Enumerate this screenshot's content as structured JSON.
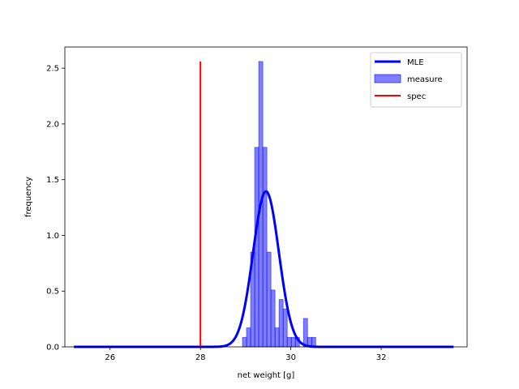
{
  "chart_data": {
    "type": "histogram",
    "xlabel": "net weight [g]",
    "ylabel": "frequency",
    "xlim": [
      25.0,
      33.9
    ],
    "ylim": [
      0,
      2.69
    ],
    "xticks": [
      26,
      28,
      30,
      32
    ],
    "yticks": [
      0.0,
      0.5,
      1.0,
      1.5,
      2.0,
      2.5
    ],
    "xtick_labels": [
      "26",
      "28",
      "30",
      "32"
    ],
    "ytick_labels": [
      "0.0",
      "0.5",
      "1.0",
      "1.5",
      "2.0",
      "2.5"
    ],
    "legend": {
      "placement": "top-right",
      "entries": [
        {
          "label": "MLE",
          "kind": "line",
          "color": "#0000ff"
        },
        {
          "label": "measure",
          "kind": "patch",
          "color": "#0000ff"
        },
        {
          "label": "spec",
          "kind": "line",
          "color": "#ff0000"
        }
      ]
    },
    "histogram": {
      "name": "measure",
      "color": "#0000ff",
      "alpha": 0.5,
      "bin_width": 0.09,
      "bins": [
        {
          "x0": 28.93,
          "value": 0.085
        },
        {
          "x0": 29.02,
          "value": 0.17
        },
        {
          "x0": 29.11,
          "value": 0.85
        },
        {
          "x0": 29.2,
          "value": 1.79
        },
        {
          "x0": 29.29,
          "value": 2.56
        },
        {
          "x0": 29.38,
          "value": 1.79
        },
        {
          "x0": 29.47,
          "value": 0.85
        },
        {
          "x0": 29.56,
          "value": 0.51
        },
        {
          "x0": 29.65,
          "value": 0.17
        },
        {
          "x0": 29.74,
          "value": 0.425
        },
        {
          "x0": 29.83,
          "value": 0.34
        },
        {
          "x0": 29.92,
          "value": 0.085
        },
        {
          "x0": 30.01,
          "value": 0.085
        },
        {
          "x0": 30.1,
          "value": 0.085
        },
        {
          "x0": 30.19,
          "value": 0.0
        },
        {
          "x0": 30.28,
          "value": 0.255
        },
        {
          "x0": 30.37,
          "value": 0.085
        },
        {
          "x0": 30.46,
          "value": 0.085
        }
      ]
    },
    "mle": {
      "name": "MLE",
      "color": "#0000ff",
      "mean": 29.45,
      "std": 0.286,
      "x_range": [
        25.2,
        33.6
      ]
    },
    "spec": {
      "name": "spec",
      "color": "#ff0000",
      "x": 28.0,
      "y_range": [
        0,
        2.56
      ]
    }
  }
}
